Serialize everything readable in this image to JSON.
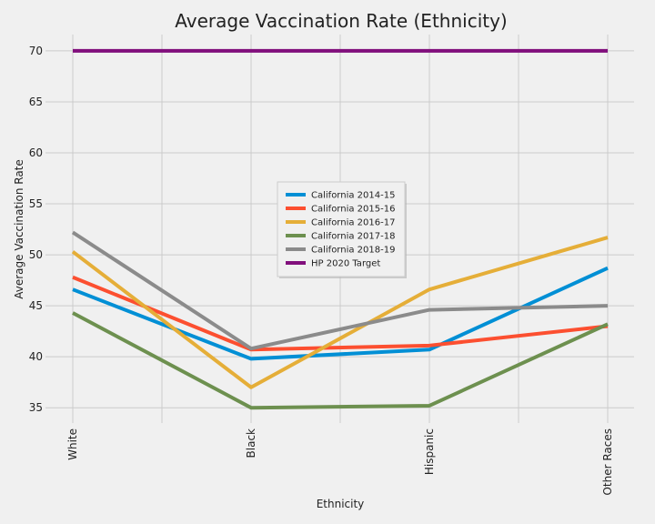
{
  "chart_data": {
    "type": "line",
    "title": "Average Vaccination Rate (Ethnicity)",
    "xlabel": "Ethnicity",
    "ylabel": "Average Vaccination Rate",
    "categories": [
      "White",
      "Black",
      "Hispanic",
      "Other Races"
    ],
    "ylim": [
      33.5,
      71.6
    ],
    "yticks": [
      35,
      40,
      45,
      50,
      55,
      60,
      65,
      70
    ],
    "grid": true,
    "legend_position": "center",
    "series": [
      {
        "name": "California 2014-15",
        "color": "#008fd5",
        "values": [
          46.6,
          39.8,
          40.7,
          48.7
        ]
      },
      {
        "name": "California 2015-16",
        "color": "#fc4f30",
        "values": [
          47.8,
          40.7,
          41.1,
          43.0
        ]
      },
      {
        "name": "California 2016-17",
        "color": "#e5ae38",
        "values": [
          50.3,
          37.0,
          46.6,
          51.7
        ]
      },
      {
        "name": "California 2017-18",
        "color": "#6d904f",
        "values": [
          44.3,
          35.0,
          35.2,
          43.2
        ]
      },
      {
        "name": "California 2018-19",
        "color": "#8b8b8b",
        "values": [
          52.2,
          40.8,
          44.6,
          45.0
        ]
      },
      {
        "name": "HP 2020 Target",
        "color": "#810f7c",
        "values": [
          70,
          70,
          70,
          70
        ]
      }
    ]
  }
}
